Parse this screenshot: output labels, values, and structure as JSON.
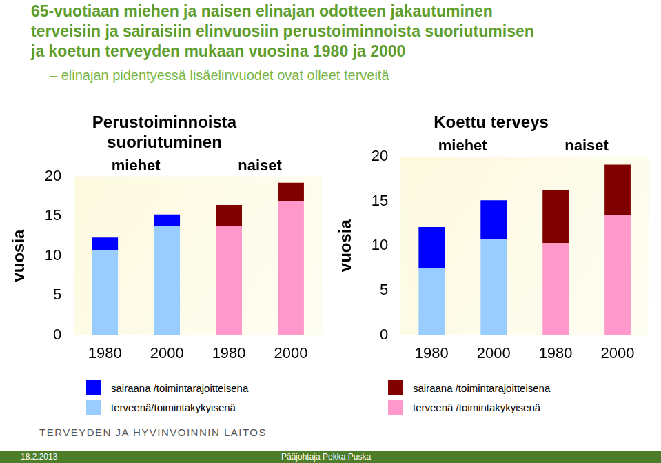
{
  "page": {
    "title": [
      "65-vuotiaan miehen ja naisen elinajan odotteen jakautuminen",
      "terveisiin ja sairaisiin elinvuosiin perustoiminnoista suoriutumisen",
      "ja koetun terveyden mukaan vuosina 1980 ja 2000"
    ],
    "subtitle": "– elinajan pidentyessä lisäelinvuodet ovat olleet terveitä",
    "organization": "TERVEYDEN JA HYVINVOINNIN LAITOS",
    "date": "18.2.2013",
    "author": "Pääjohtaja Pekka Puska"
  },
  "chart_data": [
    {
      "type": "bar",
      "title": [
        "Perustoiminnoista",
        "suoriutuminen"
      ],
      "y_label": "vuosia",
      "annotations": [
        "miehet",
        "naiset"
      ],
      "categories": [
        "1980",
        "2000",
        "1980",
        "2000"
      ],
      "series": [
        {
          "name": "terveenä/toimintakykyisenä",
          "color": "#99ccff",
          "colors": [
            "#99ccff",
            "#99ccff",
            "#ff99cc",
            "#ff99cc"
          ],
          "values": [
            10.7,
            13.8,
            13.8,
            16.9
          ]
        },
        {
          "name": "sairaana /toimintarajoitteisena",
          "color": "#0000ff",
          "colors": [
            "#0000ff",
            "#0000ff",
            "#800000",
            "#800000"
          ],
          "values": [
            1.6,
            1.4,
            2.6,
            2.3
          ]
        }
      ],
      "stacked": true,
      "ylim": [
        0,
        20
      ],
      "yticks": [
        0,
        5,
        10,
        15,
        20
      ],
      "grid": false,
      "legend": "bottom"
    },
    {
      "type": "bar",
      "title": "Koettu terveys",
      "y_label": "vuosia",
      "annotations": [
        "miehet",
        "naiset"
      ],
      "categories": [
        "1980",
        "2000",
        "1980",
        "2000"
      ],
      "series": [
        {
          "name": "terveenä /toimintakykyisenä",
          "color": "#ff99cc",
          "colors": [
            "#99ccff",
            "#99ccff",
            "#ff99cc",
            "#ff99cc"
          ],
          "values": [
            7.5,
            10.7,
            10.3,
            13.5
          ]
        },
        {
          "name": "sairaana /toimintarajoitteisena",
          "color": "#800000",
          "colors": [
            "#0000ff",
            "#0000ff",
            "#800000",
            "#800000"
          ],
          "values": [
            4.6,
            4.4,
            5.9,
            5.6
          ]
        }
      ],
      "stacked": true,
      "ylim": [
        0,
        20
      ],
      "yticks": [
        0,
        5,
        10,
        15,
        20
      ],
      "grid": false,
      "legend": "bottom"
    }
  ]
}
